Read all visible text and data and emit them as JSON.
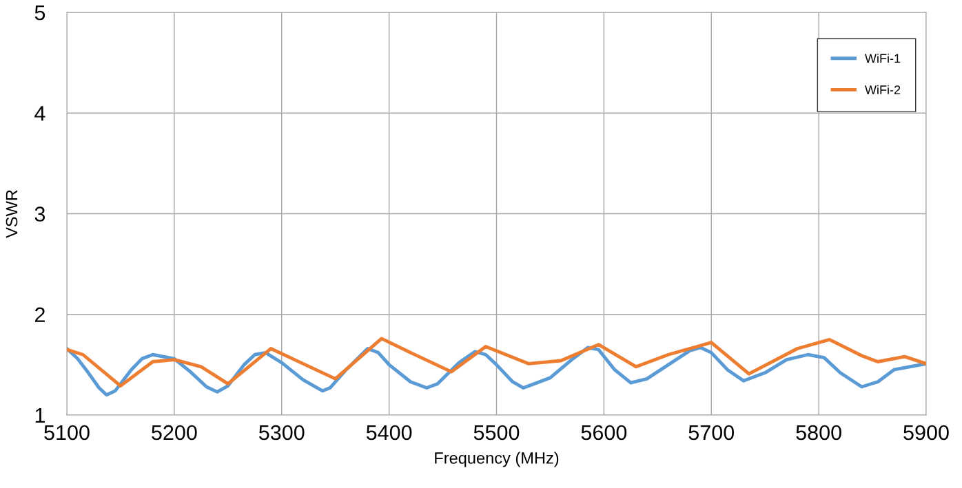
{
  "chart_data": {
    "type": "line",
    "xlabel": "Frequency (MHz)",
    "ylabel": "VSWR",
    "xlim": [
      5100,
      5900
    ],
    "xticks": [
      5100,
      5200,
      5300,
      5400,
      5500,
      5600,
      5700,
      5800,
      5900
    ],
    "ylim": [
      1,
      5
    ],
    "yticks": [
      1,
      2,
      3,
      4,
      5
    ],
    "grid": true,
    "legend": "top right",
    "marker": "none",
    "line_style": "solid",
    "series": [
      {
        "name": "WiFi-1",
        "color": "#5b9bd5",
        "x": [
          5100,
          5110,
          5120,
          5130,
          5137,
          5145,
          5160,
          5170,
          5180,
          5200,
          5215,
          5230,
          5240,
          5250,
          5265,
          5275,
          5285,
          5300,
          5320,
          5338,
          5345,
          5360,
          5380,
          5390,
          5400,
          5420,
          5435,
          5445,
          5465,
          5480,
          5490,
          5500,
          5515,
          5525,
          5550,
          5570,
          5585,
          5595,
          5610,
          5625,
          5640,
          5660,
          5680,
          5690,
          5700,
          5715,
          5730,
          5750,
          5770,
          5790,
          5805,
          5820,
          5840,
          5855,
          5870,
          5900
        ],
        "values": [
          1.66,
          1.56,
          1.42,
          1.27,
          1.2,
          1.24,
          1.45,
          1.56,
          1.6,
          1.56,
          1.43,
          1.28,
          1.23,
          1.29,
          1.5,
          1.6,
          1.62,
          1.52,
          1.35,
          1.24,
          1.27,
          1.45,
          1.66,
          1.62,
          1.5,
          1.33,
          1.27,
          1.31,
          1.52,
          1.63,
          1.6,
          1.5,
          1.33,
          1.27,
          1.37,
          1.55,
          1.67,
          1.65,
          1.45,
          1.32,
          1.36,
          1.5,
          1.64,
          1.67,
          1.62,
          1.45,
          1.34,
          1.42,
          1.55,
          1.6,
          1.57,
          1.42,
          1.28,
          1.33,
          1.45,
          1.51
        ]
      },
      {
        "name": "WiFi-2",
        "color": "#ed7d31",
        "x": [
          5100,
          5115,
          5150,
          5180,
          5200,
          5225,
          5250,
          5290,
          5310,
          5350,
          5393,
          5420,
          5458,
          5490,
          5530,
          5560,
          5595,
          5630,
          5660,
          5700,
          5735,
          5780,
          5810,
          5840,
          5855,
          5880,
          5900
        ],
        "values": [
          1.65,
          1.6,
          1.29,
          1.53,
          1.55,
          1.48,
          1.31,
          1.66,
          1.56,
          1.36,
          1.76,
          1.62,
          1.43,
          1.68,
          1.51,
          1.54,
          1.7,
          1.48,
          1.6,
          1.72,
          1.41,
          1.66,
          1.75,
          1.59,
          1.53,
          1.58,
          1.51
        ]
      }
    ]
  }
}
